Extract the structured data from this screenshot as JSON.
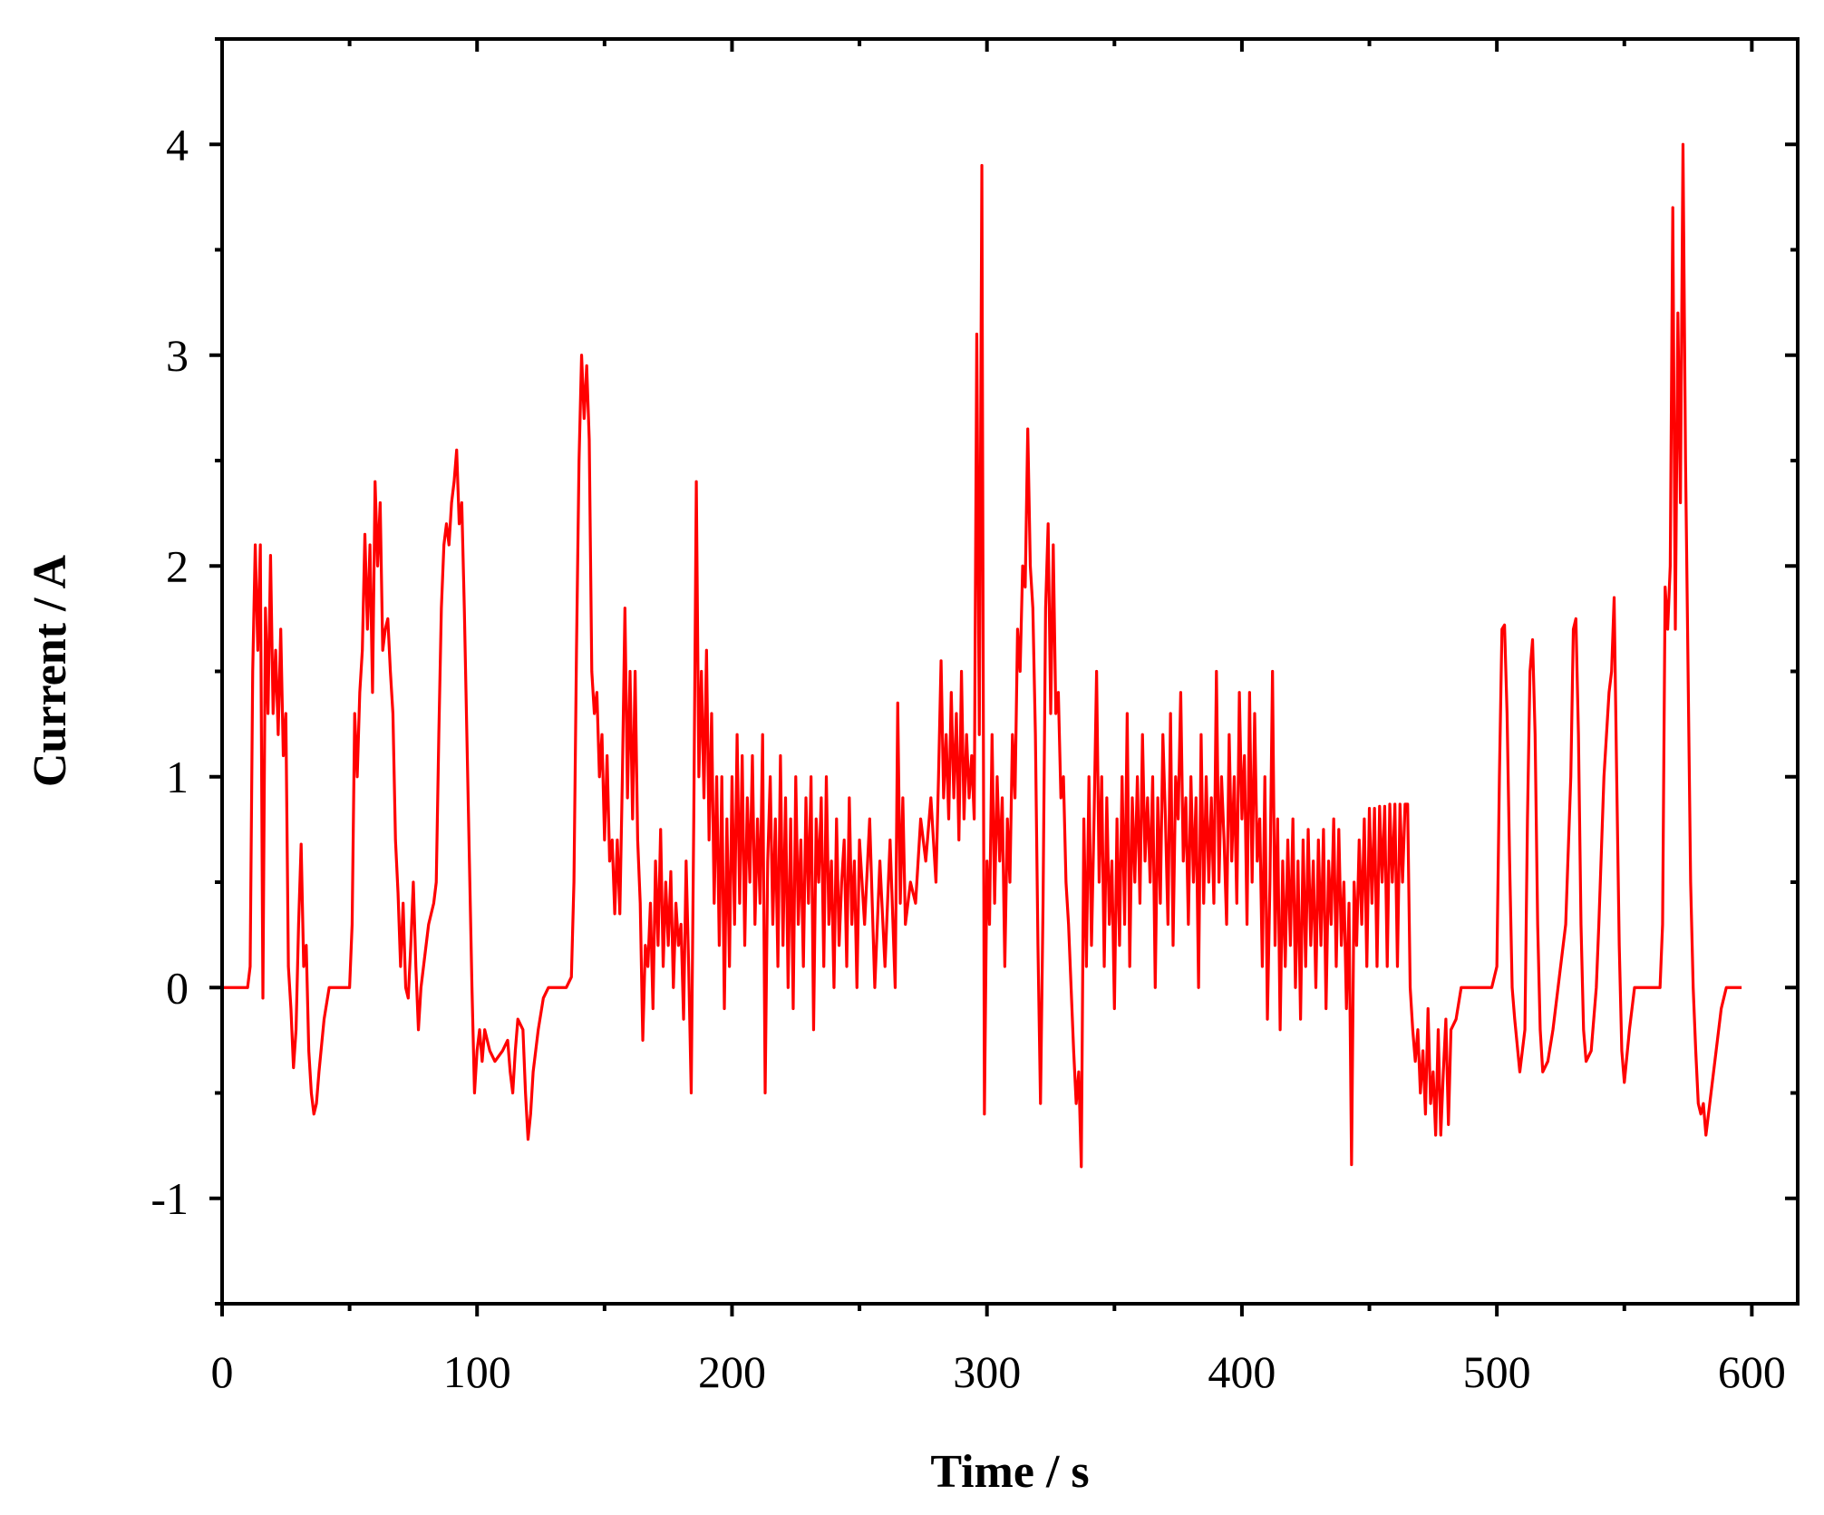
{
  "chart_data": {
    "type": "line",
    "xlabel": "Time / s",
    "ylabel": "Current / A",
    "xlim": [
      0,
      618
    ],
    "ylim": [
      -1.5,
      4.5
    ],
    "xticks": [
      0,
      100,
      200,
      300,
      400,
      500,
      600
    ],
    "yticks": [
      -1,
      0,
      1,
      2,
      3,
      4
    ],
    "xminorticks": [
      50,
      150,
      250,
      350,
      450,
      550
    ],
    "yminorticks": [
      -1.5,
      -0.5,
      0.5,
      1.5,
      2.5,
      3.5,
      4.5
    ],
    "grid": false,
    "x": [
      0,
      5,
      10,
      11,
      12,
      13,
      14,
      15,
      16,
      17,
      18,
      19,
      20,
      21,
      22,
      23,
      24,
      25,
      26,
      27,
      28,
      29,
      30,
      31,
      32,
      33,
      34,
      35,
      36,
      37,
      38,
      40,
      42,
      50,
      51,
      52,
      53,
      54,
      55,
      56,
      57,
      58,
      59,
      60,
      61,
      62,
      63,
      64,
      65,
      66,
      67,
      68,
      69,
      70,
      71,
      72,
      73,
      74,
      75,
      76,
      77,
      78,
      79,
      80,
      81,
      82,
      83,
      84,
      85,
      86,
      87,
      88,
      89,
      90,
      91,
      92,
      93,
      94,
      95,
      96,
      97,
      98,
      99,
      100,
      101,
      102,
      103,
      105,
      107,
      110,
      112,
      113,
      114,
      115,
      116,
      118,
      119,
      120,
      121,
      122,
      124,
      126,
      128,
      135,
      137,
      138,
      139,
      140,
      141,
      142,
      143,
      144,
      145,
      146,
      147,
      148,
      149,
      150,
      151,
      152,
      153,
      154,
      155,
      156,
      157,
      158,
      159,
      160,
      161,
      162,
      163,
      164,
      165,
      166,
      167,
      168,
      169,
      170,
      171,
      172,
      173,
      174,
      175,
      176,
      177,
      178,
      179,
      180,
      181,
      182,
      183,
      184,
      185,
      186,
      187,
      188,
      189,
      190,
      191,
      192,
      193,
      194,
      195,
      196,
      197,
      198,
      199,
      200,
      201,
      202,
      203,
      204,
      205,
      206,
      207,
      208,
      209,
      210,
      211,
      212,
      213,
      214,
      215,
      216,
      217,
      218,
      219,
      220,
      221,
      222,
      223,
      224,
      225,
      226,
      227,
      228,
      229,
      230,
      231,
      232,
      233,
      234,
      235,
      236,
      237,
      238,
      239,
      240,
      241,
      242,
      243,
      244,
      245,
      246,
      247,
      248,
      249,
      250,
      252,
      254,
      256,
      258,
      260,
      262,
      264,
      265,
      266,
      267,
      268,
      270,
      272,
      274,
      276,
      278,
      280,
      281,
      282,
      283,
      284,
      285,
      286,
      287,
      288,
      289,
      290,
      291,
      292,
      293,
      294,
      295,
      296,
      297,
      298,
      299,
      300,
      301,
      302,
      303,
      304,
      305,
      306,
      307,
      308,
      309,
      310,
      311,
      312,
      313,
      314,
      315,
      316,
      317,
      318,
      319,
      320,
      321,
      322,
      323,
      324,
      325,
      326,
      327,
      328,
      329,
      330,
      331,
      332,
      333,
      334,
      335,
      336,
      337,
      338,
      339,
      340,
      341,
      342,
      343,
      344,
      345,
      346,
      347,
      348,
      349,
      350,
      351,
      352,
      353,
      354,
      355,
      356,
      357,
      358,
      359,
      360,
      361,
      362,
      363,
      364,
      365,
      366,
      367,
      368,
      369,
      370,
      371,
      372,
      373,
      374,
      375,
      376,
      377,
      378,
      379,
      380,
      381,
      382,
      383,
      384,
      385,
      386,
      387,
      388,
      389,
      390,
      391,
      392,
      393,
      394,
      395,
      396,
      397,
      398,
      399,
      400,
      401,
      402,
      403,
      404,
      405,
      406,
      407,
      408,
      409,
      410,
      411,
      412,
      413,
      414,
      415,
      416,
      417,
      418,
      419,
      420,
      421,
      422,
      423,
      424,
      425,
      426,
      427,
      428,
      429,
      430,
      431,
      432,
      433,
      434,
      435,
      436,
      437,
      438,
      439,
      440,
      441,
      442,
      443,
      444,
      445,
      446,
      447,
      448,
      449,
      450,
      451,
      452,
      453,
      454,
      455,
      456,
      457,
      458,
      459,
      460,
      461,
      462,
      463,
      464,
      465,
      466,
      467,
      468,
      469,
      470,
      471,
      472,
      473,
      474,
      475,
      476,
      477,
      478,
      479,
      480,
      481,
      482,
      484,
      486,
      498,
      500,
      501,
      502,
      503,
      504,
      505,
      506,
      507,
      509,
      511,
      512,
      513,
      514,
      515,
      516,
      517,
      518,
      520,
      522,
      524,
      527,
      529,
      530,
      531,
      532,
      533,
      534,
      535,
      537,
      539,
      540,
      542,
      544,
      545,
      546,
      547,
      548,
      549,
      550,
      552,
      554,
      564,
      565,
      566,
      567,
      568,
      569,
      570,
      571,
      572,
      573,
      574,
      575,
      576,
      577,
      578,
      579,
      580,
      581,
      582,
      583,
      584,
      586,
      588,
      590,
      596
    ],
    "series": [
      {
        "color": "#ff0000",
        "values": [
          0,
          0,
          0,
          0.1,
          1.5,
          2.1,
          1.6,
          2.1,
          -0.05,
          1.8,
          1.3,
          2.05,
          1.3,
          1.6,
          1.2,
          1.7,
          1.1,
          1.3,
          0.1,
          -0.1,
          -0.38,
          -0.2,
          0.3,
          0.68,
          0.1,
          0.2,
          -0.3,
          -0.5,
          -0.6,
          -0.55,
          -0.4,
          -0.15,
          0,
          0,
          0.3,
          1.3,
          1.0,
          1.4,
          1.6,
          2.15,
          1.7,
          2.1,
          1.4,
          2.4,
          2.0,
          2.3,
          1.6,
          1.7,
          1.75,
          1.5,
          1.3,
          0.7,
          0.45,
          0.1,
          0.4,
          0.0,
          -0.05,
          0.2,
          0.5,
          0.1,
          -0.2,
          0.0,
          0.1,
          0.2,
          0.3,
          0.35,
          0.4,
          0.5,
          1.2,
          1.8,
          2.1,
          2.2,
          2.1,
          2.3,
          2.4,
          2.55,
          2.2,
          2.3,
          1.8,
          1.2,
          0.6,
          0.0,
          -0.5,
          -0.3,
          -0.2,
          -0.35,
          -0.2,
          -0.3,
          -0.35,
          -0.3,
          -0.25,
          -0.4,
          -0.5,
          -0.3,
          -0.15,
          -0.2,
          -0.5,
          -0.72,
          -0.6,
          -0.4,
          -0.2,
          -0.05,
          0,
          0,
          0.05,
          0.5,
          1.6,
          2.5,
          3.0,
          2.7,
          2.95,
          2.6,
          1.5,
          1.3,
          1.4,
          1.0,
          1.2,
          0.7,
          1.1,
          0.6,
          0.7,
          0.35,
          0.7,
          0.35,
          1.0,
          1.8,
          0.9,
          1.5,
          0.8,
          1.5,
          0.7,
          0.4,
          -0.25,
          0.2,
          0.1,
          0.4,
          -0.1,
          0.6,
          0.2,
          0.75,
          0.1,
          0.5,
          0.2,
          0.55,
          0.0,
          0.4,
          0.2,
          0.3,
          -0.15,
          0.6,
          0.1,
          -0.5,
          0.8,
          2.4,
          1.0,
          1.5,
          0.9,
          1.6,
          0.7,
          1.3,
          0.4,
          1.0,
          0.2,
          1.0,
          -0.1,
          0.8,
          0.1,
          1.0,
          0.3,
          1.2,
          0.4,
          1.1,
          0.2,
          0.9,
          0.5,
          1.1,
          0.3,
          0.8,
          0.4,
          1.2,
          -0.5,
          0.6,
          1.0,
          0.3,
          0.8,
          0.1,
          1.1,
          0.2,
          0.9,
          0.0,
          0.8,
          -0.1,
          1.0,
          0.3,
          0.7,
          0.1,
          0.9,
          0.4,
          1.0,
          -0.2,
          0.8,
          0.5,
          0.9,
          0.1,
          1.0,
          0.3,
          0.6,
          0.0,
          0.8,
          0.2,
          0.5,
          0.7,
          0.1,
          0.9,
          0.3,
          0.6,
          0.0,
          0.7,
          0.3,
          0.8,
          0.0,
          0.6,
          0.1,
          0.7,
          0.0,
          1.35,
          0.4,
          0.9,
          0.3,
          0.5,
          0.4,
          0.8,
          0.6,
          0.9,
          0.5,
          1.0,
          1.55,
          0.9,
          1.2,
          0.8,
          1.4,
          0.9,
          1.3,
          0.7,
          1.5,
          0.8,
          1.2,
          0.9,
          1.1,
          0.8,
          3.1,
          1.2,
          3.9,
          -0.6,
          0.6,
          0.3,
          1.2,
          0.4,
          1.0,
          0.6,
          0.9,
          0.1,
          0.8,
          0.5,
          1.2,
          0.9,
          1.7,
          1.5,
          2.0,
          1.9,
          2.65,
          2.0,
          1.8,
          1.2,
          0.2,
          -0.55,
          0.4,
          1.8,
          2.2,
          1.3,
          2.1,
          1.3,
          1.4,
          0.9,
          1.0,
          0.5,
          0.3,
          0.0,
          -0.3,
          -0.55,
          -0.4,
          -0.85,
          0.8,
          0.1,
          1.0,
          0.2,
          0.8,
          1.5,
          0.5,
          1.0,
          0.1,
          0.9,
          0.3,
          0.6,
          -0.1,
          0.8,
          0.2,
          1.0,
          0.3,
          1.3,
          0.1,
          0.9,
          0.5,
          1.0,
          0.4,
          1.2,
          0.6,
          0.9,
          0.5,
          1.0,
          0.0,
          0.9,
          0.4,
          1.2,
          0.8,
          0.3,
          1.3,
          0.2,
          1.0,
          0.8,
          1.4,
          0.6,
          0.9,
          0.3,
          1.0,
          0.5,
          0.9,
          0.0,
          1.2,
          0.4,
          1.0,
          0.5,
          0.9,
          0.4,
          1.5,
          0.5,
          1.0,
          0.7,
          0.3,
          1.2,
          0.6,
          1.0,
          0.4,
          1.4,
          0.8,
          1.1,
          0.3,
          1.4,
          0.5,
          1.3,
          0.6,
          0.8,
          0.1,
          1.0,
          -0.15,
          0.5,
          1.5,
          0.2,
          0.8,
          -0.2,
          0.6,
          0.1,
          0.7,
          0.2,
          0.8,
          0.0,
          0.6,
          -0.15,
          0.7,
          0.1,
          0.75,
          0.2,
          0.6,
          0.0,
          0.7,
          0.2,
          0.75,
          -0.1,
          0.6,
          0.3,
          0.8,
          0.1,
          0.75,
          0.2,
          0.5,
          -0.1,
          0.4,
          -0.84,
          0.5,
          0.2,
          0.7,
          0.3,
          0.8,
          0.1,
          0.85,
          0.4,
          0.85,
          0.1,
          0.86,
          0.5,
          0.86,
          0.1,
          0.87,
          0.5,
          0.87,
          0.1,
          0.87,
          0.5,
          0.87,
          0.87,
          0.0,
          -0.2,
          -0.35,
          -0.2,
          -0.5,
          -0.3,
          -0.6,
          -0.1,
          -0.55,
          -0.4,
          -0.7,
          -0.2,
          -0.7,
          -0.4,
          -0.15,
          -0.65,
          -0.2,
          -0.15,
          0,
          0,
          0.1,
          1.0,
          1.7,
          1.72,
          1.3,
          0.6,
          0.0,
          -0.15,
          -0.4,
          -0.2,
          0.8,
          1.5,
          1.65,
          1.2,
          0.3,
          -0.2,
          -0.4,
          -0.35,
          -0.2,
          0,
          0.3,
          1.0,
          1.7,
          1.75,
          1.2,
          0.3,
          -0.2,
          -0.35,
          -0.3,
          0,
          0.3,
          1.0,
          1.4,
          1.5,
          1.85,
          1.0,
          0.2,
          -0.3,
          -0.45,
          -0.2,
          0,
          0,
          0.3,
          1.9,
          1.7,
          2.0,
          3.7,
          1.7,
          3.2,
          2.3,
          4.0,
          2.5,
          1.5,
          0.5,
          0.0,
          -0.3,
          -0.55,
          -0.6,
          -0.55,
          -0.7,
          -0.6,
          -0.5,
          -0.3,
          -0.1,
          0,
          0
        ]
      }
    ]
  }
}
